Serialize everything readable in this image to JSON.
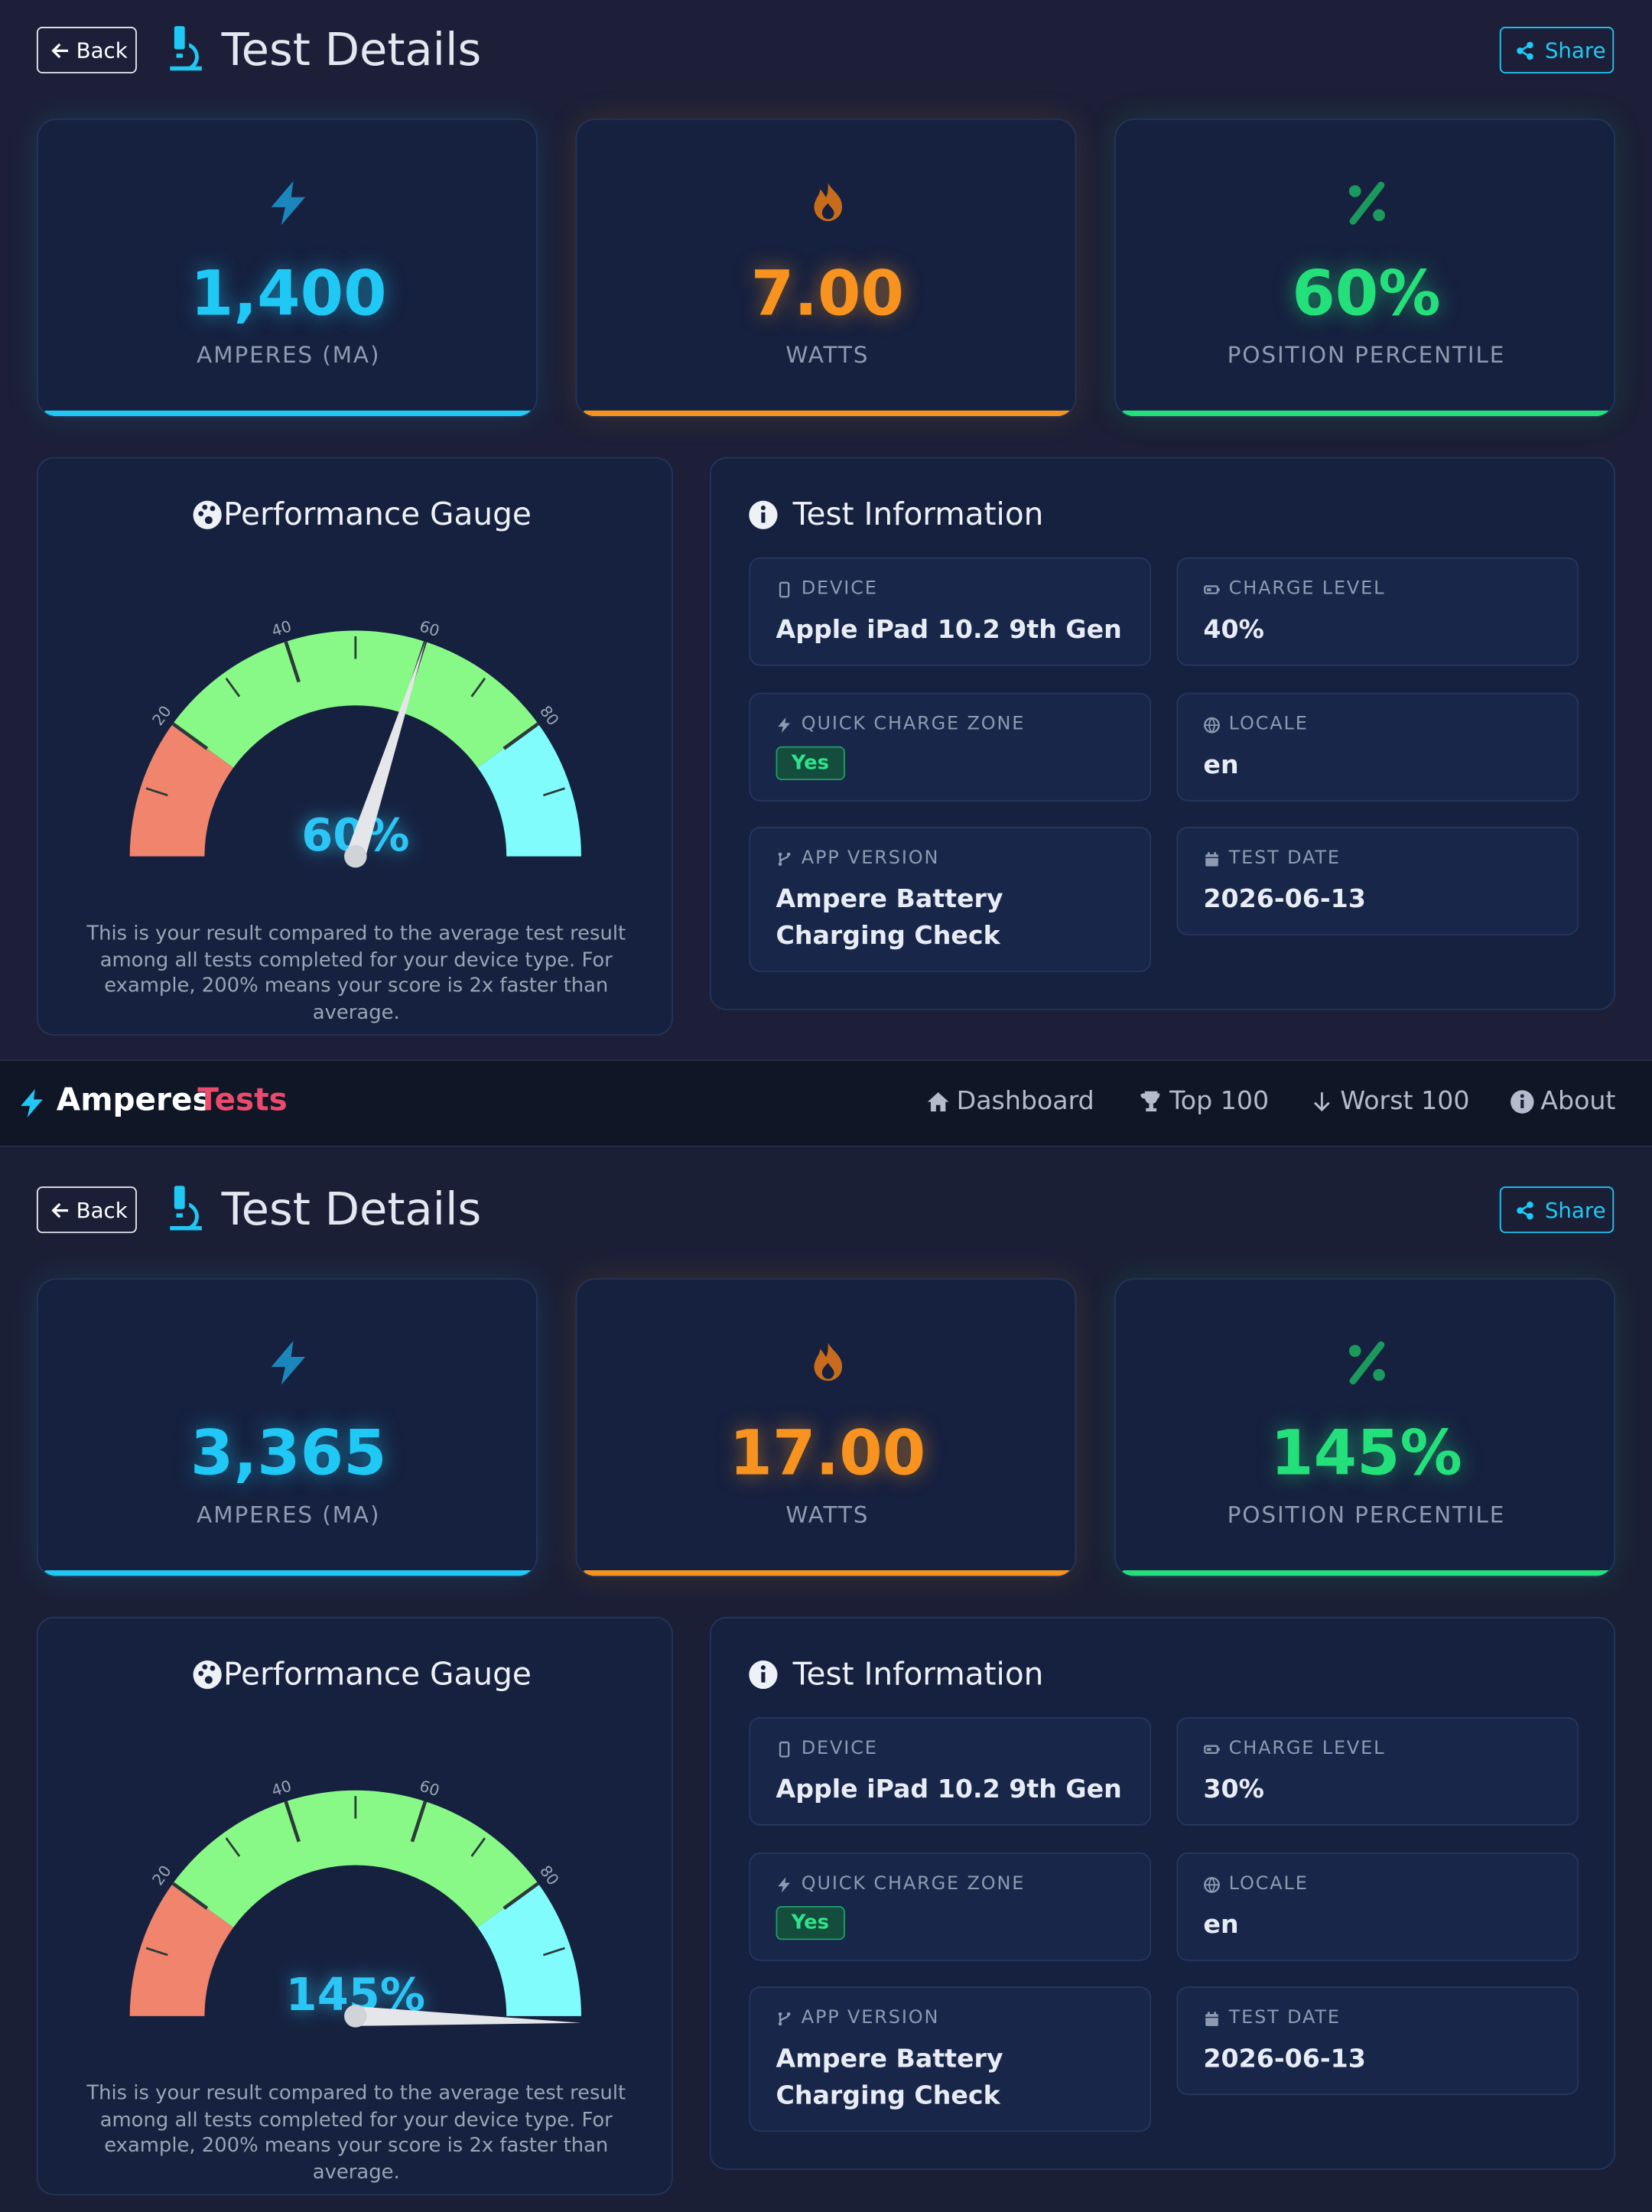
{
  "navbar": {
    "brand_main": "Amperes",
    "brand_accent": "Tests",
    "links": [
      "Dashboard",
      "Top 100",
      "Worst 100",
      "About"
    ]
  },
  "results": [
    {
      "header": {
        "back": "Back",
        "title": "Test Details",
        "share": "Share"
      },
      "stats": [
        {
          "value": "1,400",
          "label": "AMPERES (MA)"
        },
        {
          "value": "7.00",
          "label": "WATTS"
        },
        {
          "value": "60%",
          "label": "POSITION PERCENTILE"
        }
      ],
      "gauge": {
        "type": "gauge",
        "title": "Performance Gauge",
        "value": 60,
        "value_label": "60%",
        "range": [
          0,
          100
        ],
        "ticks": [
          20,
          40,
          60,
          80
        ],
        "minor_ticks": [
          10,
          30,
          50,
          70,
          90
        ],
        "bands": [
          {
            "from": 0,
            "to": 20,
            "color": "#f0846c"
          },
          {
            "from": 20,
            "to": 80,
            "color": "#88f987"
          },
          {
            "from": 80,
            "to": 100,
            "color": "#80fcfc"
          }
        ],
        "description": "This is your result compared to the average test result among all tests completed for your device type. For example, 200% means your score is 2x faster than average."
      },
      "info": {
        "title": "Test Information",
        "items": [
          {
            "label": "DEVICE",
            "value": "Apple iPad 10.2 9th Gen"
          },
          {
            "label": "CHARGE LEVEL",
            "value": "40%"
          },
          {
            "label": "QUICK CHARGE ZONE",
            "value": "Yes"
          },
          {
            "label": "LOCALE",
            "value": "en"
          },
          {
            "label": "APP VERSION",
            "value": "Ampere Battery Charging Check"
          },
          {
            "label": "TEST DATE",
            "value": "2026-06-13"
          }
        ]
      }
    },
    {
      "header": {
        "back": "Back",
        "title": "Test Details",
        "share": "Share"
      },
      "stats": [
        {
          "value": "3,365",
          "label": "AMPERES (MA)"
        },
        {
          "value": "17.00",
          "label": "WATTS"
        },
        {
          "value": "145%",
          "label": "POSITION PERCENTILE"
        }
      ],
      "gauge": {
        "type": "gauge",
        "title": "Performance Gauge",
        "value": 145,
        "value_label": "145%",
        "range": [
          0,
          100
        ],
        "ticks": [
          20,
          40,
          60,
          80
        ],
        "minor_ticks": [
          10,
          30,
          50,
          70,
          90
        ],
        "bands": [
          {
            "from": 0,
            "to": 20,
            "color": "#f0846c"
          },
          {
            "from": 20,
            "to": 80,
            "color": "#88f987"
          },
          {
            "from": 80,
            "to": 100,
            "color": "#80fcfc"
          }
        ],
        "description": "This is your result compared to the average test result among all tests completed for your device type. For example, 200% means your score is 2x faster than average."
      },
      "info": {
        "title": "Test Information",
        "items": [
          {
            "label": "DEVICE",
            "value": "Apple iPad 10.2 9th Gen"
          },
          {
            "label": "CHARGE LEVEL",
            "value": "30%"
          },
          {
            "label": "QUICK CHARGE ZONE",
            "value": "Yes"
          },
          {
            "label": "LOCALE",
            "value": "en"
          },
          {
            "label": "APP VERSION",
            "value": "Ampere Battery Charging Check"
          },
          {
            "label": "TEST DATE",
            "value": "2026-06-13"
          }
        ]
      }
    }
  ]
}
